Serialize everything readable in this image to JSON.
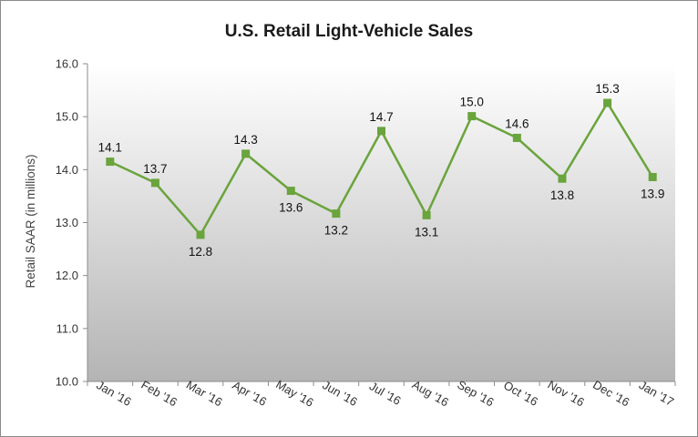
{
  "chart_data": {
    "type": "line",
    "title": "U.S. Retail Light-Vehicle Sales",
    "xlabel": "",
    "ylabel": "Retail SAAR (in millions)",
    "ylim": [
      10.0,
      16.0
    ],
    "yticks": [
      "10.0",
      "11.0",
      "12.0",
      "13.0",
      "14.0",
      "15.0",
      "16.0"
    ],
    "categories": [
      "Jan '16",
      "Feb '16",
      "Mar '16",
      "Apr '16",
      "May '16",
      "Jun '16",
      "Jul '16",
      "Aug '16",
      "Sep '16",
      "Oct '16",
      "Nov '16",
      "Dec '16",
      "Jan '17"
    ],
    "series": [
      {
        "values": [
          14.15,
          13.75,
          12.77,
          14.3,
          13.6,
          13.17,
          14.73,
          13.14,
          15.01,
          14.6,
          13.83,
          15.26,
          13.86
        ],
        "labels": [
          "14.1",
          "13.7",
          "12.8",
          "14.3",
          "13.6",
          "13.2",
          "14.7",
          "13.1",
          "15.0",
          "14.6",
          "13.8",
          "15.3",
          "13.9"
        ],
        "label_positions": [
          "above",
          "above",
          "below",
          "above",
          "below",
          "below",
          "above",
          "below",
          "above",
          "above",
          "below",
          "above",
          "below"
        ],
        "color": "#6aa43c"
      }
    ],
    "grid": false,
    "legend": "none",
    "background": "gradient-white-to-gray"
  }
}
